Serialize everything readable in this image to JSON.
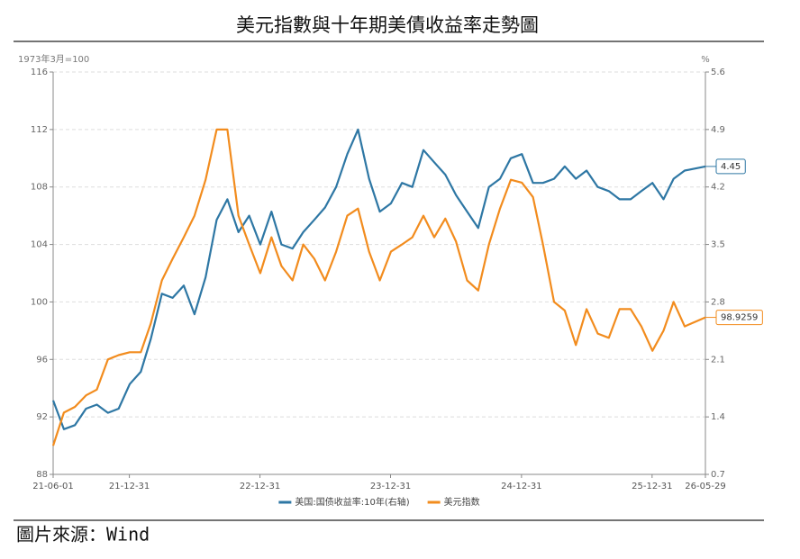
{
  "chart_data": {
    "type": "line",
    "title": "美元指數與十年期美債收益率走勢圖",
    "y_label": "1973年3月=100",
    "y2_label": "%",
    "x": [
      "21-06-01",
      "21-07-01",
      "21-08-01",
      "21-09-01",
      "21-10-01",
      "21-11-01",
      "21-12-01",
      "22-01-01",
      "22-02-01",
      "22-03-01",
      "22-04-01",
      "22-05-01",
      "22-06-01",
      "22-07-01",
      "22-08-01",
      "22-09-01",
      "22-10-01",
      "22-11-01",
      "22-12-01",
      "23-01-01",
      "23-02-01",
      "23-03-01",
      "23-04-01",
      "23-05-01",
      "23-06-01",
      "23-07-01",
      "23-08-01",
      "23-09-01",
      "23-10-01",
      "23-11-01",
      "23-12-01",
      "24-01-01",
      "24-02-01",
      "24-03-01",
      "24-04-01",
      "24-05-01",
      "24-06-01",
      "24-07-01",
      "24-08-01",
      "24-09-01",
      "24-10-01",
      "24-11-01",
      "24-12-01",
      "25-01-01",
      "25-02-01",
      "25-03-01",
      "25-04-01",
      "25-05-01",
      "25-06-01",
      "25-07-01",
      "25-08-01",
      "25-09-01",
      "25-10-01",
      "25-11-01",
      "25-12-01",
      "26-01-01",
      "26-02-01",
      "26-03-01",
      "26-04-01",
      "26-05-29"
    ],
    "series": [
      {
        "name": "美国:国债收益率:10年(右轴)",
        "color": "#2e77a4",
        "axis": "y2",
        "values": [
          1.6,
          1.25,
          1.3,
          1.5,
          1.55,
          1.45,
          1.5,
          1.8,
          1.95,
          2.35,
          2.9,
          2.85,
          3.0,
          2.65,
          3.1,
          3.8,
          4.05,
          3.65,
          3.85,
          3.5,
          3.9,
          3.5,
          3.45,
          3.65,
          3.8,
          3.95,
          4.2,
          4.6,
          4.9,
          4.3,
          3.9,
          4.0,
          4.25,
          4.2,
          4.65,
          4.5,
          4.35,
          4.1,
          3.9,
          3.7,
          4.2,
          4.3,
          4.55,
          4.6,
          4.25,
          4.25,
          4.3,
          4.45,
          4.3,
          4.4,
          4.2,
          4.15,
          4.05,
          4.05,
          4.15,
          4.25,
          4.05,
          4.3,
          4.4,
          4.45
        ]
      },
      {
        "name": "美元指数",
        "color": "#f28c1e",
        "values": [
          90,
          92.3,
          92.7,
          93.5,
          93.9,
          96,
          96.3,
          96.5,
          96.5,
          98.5,
          101.5,
          103,
          104.5,
          106,
          108.5,
          112,
          112,
          106,
          104,
          102,
          104.5,
          102.5,
          101.5,
          104,
          103,
          101.5,
          103.5,
          106,
          106.5,
          103.5,
          101.5,
          103.5,
          104,
          104.5,
          106,
          104.5,
          105.8,
          104.2,
          101.5,
          100.8,
          104,
          106.5,
          108.5,
          108.3,
          107.3,
          104,
          100,
          99.4,
          97,
          99.5,
          97.8,
          97.5,
          99.5,
          99.5,
          98.3,
          96.6,
          98,
          100,
          98.3,
          98.9259
        ]
      }
    ],
    "xlim": [
      "21-06-01",
      "26-05-29"
    ],
    "xticks": [
      "21-06-01",
      "21-12-31",
      "22-12-31",
      "23-12-31",
      "24-12-31",
      "25-12-31",
      "26-05-29"
    ],
    "ylim": [
      88,
      116
    ],
    "yticks": [
      88,
      92,
      96,
      100,
      104,
      108,
      112,
      116
    ],
    "y2lim": [
      0.7,
      5.6
    ],
    "y2ticks": [
      0.7,
      1.4,
      2.1,
      2.8,
      3.5,
      4.2,
      4.9,
      5.6
    ],
    "grid": true,
    "legend": "bottom",
    "end_labels": true
  },
  "footer": {
    "source": "圖片來源：Wind"
  }
}
